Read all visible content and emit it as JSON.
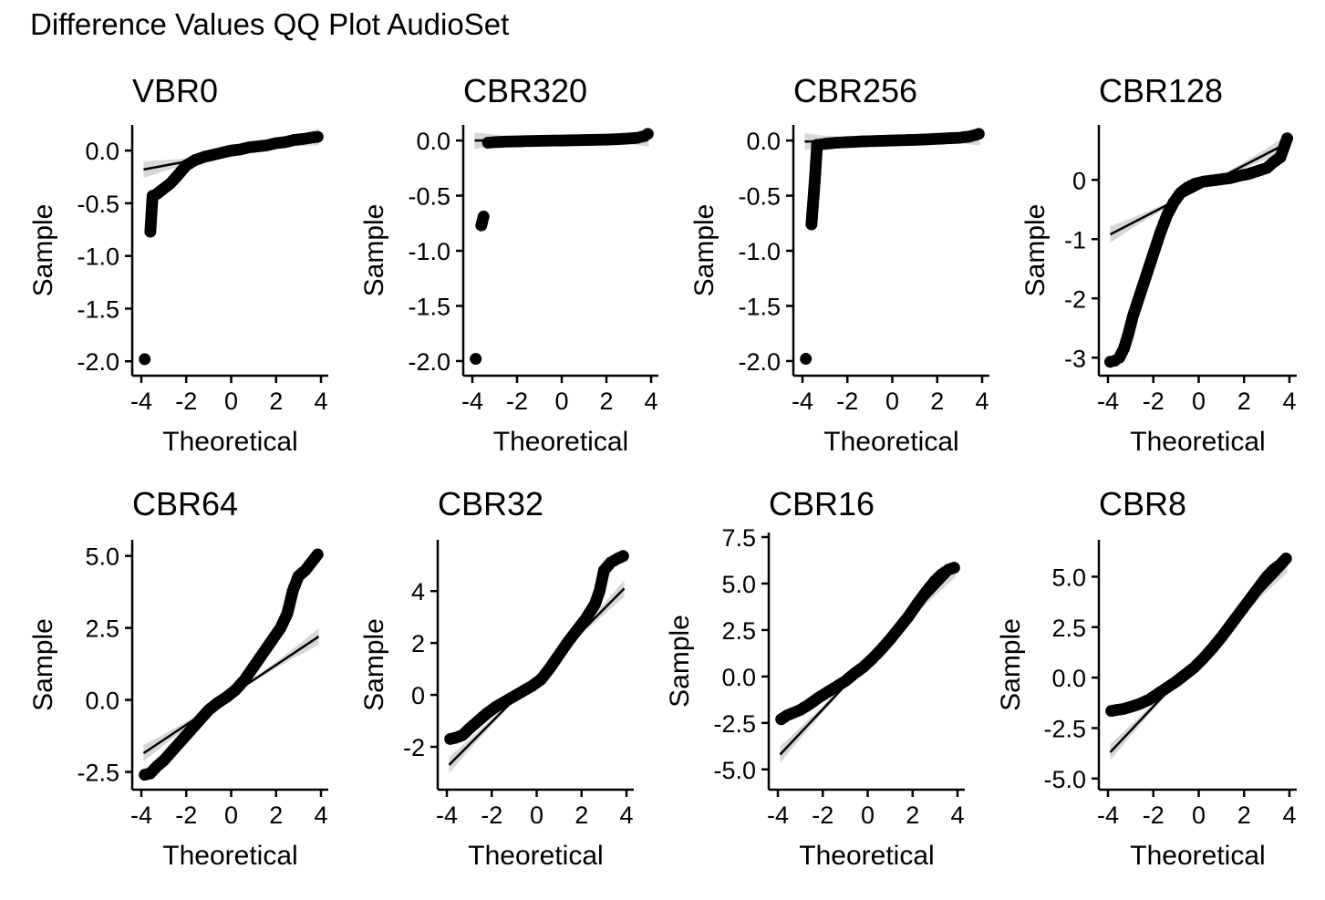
{
  "title": "Difference Values QQ Plot AudioSet",
  "colors": {
    "points": "#000000",
    "line": "#000000",
    "band": "#bdbdbd"
  },
  "chart_data": [
    {
      "type": "scatter",
      "title": "VBR0",
      "xlabel": "Theoretical",
      "ylabel": "Sample",
      "xlim": [
        -4,
        4
      ],
      "ylim": [
        -2.05,
        0.2
      ],
      "xticks": [
        "-4",
        "-2",
        "0",
        "2",
        "4"
      ],
      "xtick_values": [
        -4,
        -2,
        0,
        2,
        4
      ],
      "yticks": [
        "0.0",
        "-0.5",
        "-1.0",
        "-1.5",
        "-2.0"
      ],
      "ytick_values": [
        0,
        -0.5,
        -1,
        -1.5,
        -2
      ],
      "line": {
        "x": [
          -3.9,
          3.9
        ],
        "y": [
          -0.18,
          0.13
        ]
      },
      "points": {
        "x": [
          -3.85,
          -3.6,
          -3.5,
          -3.3,
          -3.0,
          -2.7,
          -2.4,
          -2.0,
          -1.6,
          -1.2,
          -0.8,
          -0.4,
          0.0,
          0.4,
          0.8,
          1.2,
          1.6,
          2.0,
          2.4,
          2.8,
          3.2,
          3.5,
          3.85
        ],
        "y": [
          -1.98,
          -0.77,
          -0.43,
          -0.41,
          -0.36,
          -0.31,
          -0.24,
          -0.14,
          -0.09,
          -0.06,
          -0.04,
          -0.02,
          0.0,
          0.01,
          0.03,
          0.04,
          0.05,
          0.07,
          0.08,
          0.1,
          0.11,
          0.12,
          0.13
        ]
      }
    },
    {
      "type": "scatter",
      "title": "CBR320",
      "xlabel": "Theoretical",
      "ylabel": "Sample",
      "xlim": [
        -4,
        4
      ],
      "ylim": [
        -2.05,
        0.1
      ],
      "xticks": [
        "-4",
        "-2",
        "0",
        "2",
        "4"
      ],
      "xtick_values": [
        -4,
        -2,
        0,
        2,
        4
      ],
      "yticks": [
        "0.0",
        "-0.5",
        "-1.0",
        "-1.5",
        "-2.0"
      ],
      "ytick_values": [
        0,
        -0.5,
        -1,
        -1.5,
        -2
      ],
      "line": {
        "x": [
          -3.9,
          3.9
        ],
        "y": [
          0.0,
          0.02
        ]
      },
      "points": {
        "x": [
          -3.85,
          -3.6,
          -3.5,
          -3.3,
          -3.0,
          -2.5,
          -2.0,
          -1.5,
          -1.0,
          -0.5,
          0.0,
          0.5,
          1.0,
          1.5,
          2.0,
          2.5,
          3.0,
          3.4,
          3.7,
          3.85
        ],
        "y": [
          -1.98,
          -0.77,
          -0.69,
          -0.02,
          -0.015,
          -0.01,
          -0.008,
          -0.005,
          -0.003,
          -0.001,
          0.0,
          0.002,
          0.004,
          0.006,
          0.008,
          0.012,
          0.018,
          0.025,
          0.04,
          0.06
        ]
      }
    },
    {
      "type": "scatter",
      "title": "CBR256",
      "xlabel": "Theoretical",
      "ylabel": "Sample",
      "xlim": [
        -4,
        4
      ],
      "ylim": [
        -2.05,
        0.1
      ],
      "xticks": [
        "-4",
        "-2",
        "0",
        "2",
        "4"
      ],
      "xtick_values": [
        -4,
        -2,
        0,
        2,
        4
      ],
      "yticks": [
        "0.0",
        "-0.5",
        "-1.0",
        "-1.5",
        "-2.0"
      ],
      "ytick_values": [
        0,
        -0.5,
        -1,
        -1.5,
        -2
      ],
      "line": {
        "x": [
          -3.9,
          3.9
        ],
        "y": [
          -0.01,
          0.03
        ]
      },
      "points": {
        "x": [
          -3.85,
          -3.6,
          -3.45,
          -3.35,
          -3.0,
          -2.5,
          -2.0,
          -1.5,
          -1.0,
          -0.5,
          0.0,
          0.5,
          1.0,
          1.5,
          2.0,
          2.5,
          3.0,
          3.4,
          3.7,
          3.85
        ],
        "y": [
          -1.98,
          -0.76,
          -0.36,
          -0.04,
          -0.03,
          -0.02,
          -0.015,
          -0.01,
          -0.006,
          -0.003,
          0.0,
          0.003,
          0.006,
          0.01,
          0.015,
          0.02,
          0.025,
          0.035,
          0.05,
          0.06
        ]
      }
    },
    {
      "type": "scatter",
      "title": "CBR128",
      "xlabel": "Theoretical",
      "ylabel": "Sample",
      "xlim": [
        -4,
        4
      ],
      "ylim": [
        -3.15,
        0.85
      ],
      "xticks": [
        "-4",
        "-2",
        "0",
        "2",
        "4"
      ],
      "xtick_values": [
        -4,
        -2,
        0,
        2,
        4
      ],
      "yticks": [
        "0",
        "-1",
        "-2",
        "-3"
      ],
      "ytick_values": [
        0,
        -1,
        -2,
        -3
      ],
      "line": {
        "x": [
          -3.9,
          3.9
        ],
        "y": [
          -0.92,
          0.62
        ]
      },
      "points": {
        "x": [
          -3.9,
          -3.7,
          -3.5,
          -3.3,
          -3.1,
          -2.9,
          -2.6,
          -2.3,
          -2.0,
          -1.7,
          -1.4,
          -1.1,
          -0.8,
          -0.5,
          -0.2,
          0.2,
          0.6,
          1.0,
          1.4,
          1.8,
          2.2,
          2.6,
          3.0,
          3.3,
          3.6,
          3.9
        ],
        "y": [
          -3.07,
          -3.05,
          -3.0,
          -2.85,
          -2.6,
          -2.3,
          -1.95,
          -1.6,
          -1.25,
          -0.9,
          -0.6,
          -0.38,
          -0.22,
          -0.13,
          -0.07,
          -0.03,
          -0.01,
          0.01,
          0.03,
          0.07,
          0.1,
          0.15,
          0.2,
          0.3,
          0.38,
          0.7
        ]
      }
    },
    {
      "type": "scatter",
      "title": "CBR64",
      "xlabel": "Theoretical",
      "ylabel": "Sample",
      "xlim": [
        -4,
        4
      ],
      "ylim": [
        -2.8,
        5.4
      ],
      "xticks": [
        "-4",
        "-2",
        "0",
        "2",
        "4"
      ],
      "xtick_values": [
        -4,
        -2,
        0,
        2,
        4
      ],
      "yticks": [
        "5.0",
        "2.5",
        "0.0",
        "-2.5"
      ],
      "ytick_values": [
        5,
        2.5,
        0,
        -2.5
      ],
      "line": {
        "x": [
          -3.9,
          3.9
        ],
        "y": [
          -1.85,
          2.2
        ]
      },
      "points": {
        "x": [
          -3.85,
          -3.6,
          -3.3,
          -3.0,
          -2.6,
          -2.2,
          -1.8,
          -1.4,
          -1.0,
          -0.6,
          -0.2,
          0.2,
          0.6,
          1.0,
          1.4,
          1.8,
          2.2,
          2.5,
          2.75,
          3.0,
          3.3,
          3.6,
          3.85
        ],
        "y": [
          -2.6,
          -2.55,
          -2.3,
          -2.1,
          -1.75,
          -1.4,
          -1.05,
          -0.7,
          -0.35,
          -0.1,
          0.1,
          0.35,
          0.7,
          1.15,
          1.6,
          2.05,
          2.5,
          3.0,
          3.8,
          4.3,
          4.5,
          4.8,
          5.05
        ]
      }
    },
    {
      "type": "scatter",
      "title": "CBR32",
      "xlabel": "Theoretical",
      "ylabel": "Sample",
      "xlim": [
        -4,
        4
      ],
      "ylim": [
        -3.3,
        5.8
      ],
      "xticks": [
        "-4",
        "-2",
        "0",
        "2",
        "4"
      ],
      "xtick_values": [
        -4,
        -2,
        0,
        2,
        4
      ],
      "yticks": [
        "4",
        "2",
        "0",
        "-2"
      ],
      "ytick_values": [
        4,
        2,
        0,
        -2
      ],
      "line": {
        "x": [
          -3.9,
          3.9
        ],
        "y": [
          -2.7,
          4.1
        ]
      },
      "points": {
        "x": [
          -3.85,
          -3.6,
          -3.3,
          -3.0,
          -2.6,
          -2.2,
          -1.8,
          -1.4,
          -1.0,
          -0.6,
          -0.2,
          0.2,
          0.6,
          1.0,
          1.4,
          1.8,
          2.2,
          2.6,
          2.8,
          3.0,
          3.3,
          3.6,
          3.85
        ],
        "y": [
          -1.7,
          -1.65,
          -1.55,
          -1.3,
          -1.0,
          -0.7,
          -0.45,
          -0.25,
          -0.05,
          0.15,
          0.35,
          0.6,
          1.05,
          1.55,
          2.05,
          2.5,
          2.95,
          3.5,
          4.0,
          4.8,
          5.1,
          5.25,
          5.35
        ]
      }
    },
    {
      "type": "scatter",
      "title": "CBR16",
      "xlabel": "Theoretical",
      "ylabel": "Sample",
      "xlim": [
        -4,
        4
      ],
      "ylim": [
        -5.6,
        7.5
      ],
      "xticks": [
        "-4",
        "-2",
        "0",
        "2",
        "4"
      ],
      "xtick_values": [
        -4,
        -2,
        0,
        2,
        4
      ],
      "yticks": [
        "7.5",
        "5.0",
        "2.5",
        "0.0",
        "-2.5",
        "-5.0"
      ],
      "ytick_values": [
        7.5,
        5,
        2.5,
        0,
        -2.5,
        -5
      ],
      "line": {
        "x": [
          -3.9,
          3.9
        ],
        "y": [
          -4.2,
          5.8
        ]
      },
      "points": {
        "x": [
          -3.85,
          -3.6,
          -3.3,
          -3.0,
          -2.6,
          -2.2,
          -1.8,
          -1.4,
          -1.0,
          -0.6,
          -0.2,
          0.2,
          0.6,
          1.0,
          1.4,
          1.8,
          2.2,
          2.6,
          3.0,
          3.3,
          3.6,
          3.85
        ],
        "y": [
          -2.3,
          -2.1,
          -1.95,
          -1.8,
          -1.5,
          -1.15,
          -0.85,
          -0.55,
          -0.25,
          0.15,
          0.5,
          0.95,
          1.45,
          2.0,
          2.6,
          3.2,
          3.9,
          4.55,
          5.15,
          5.5,
          5.75,
          5.85
        ]
      }
    },
    {
      "type": "scatter",
      "title": "CBR8",
      "xlabel": "Theoretical",
      "ylabel": "Sample",
      "xlim": [
        -4,
        4
      ],
      "ylim": [
        -5.1,
        6.6
      ],
      "xticks": [
        "-4",
        "-2",
        "0",
        "2",
        "4"
      ],
      "xtick_values": [
        -4,
        -2,
        0,
        2,
        4
      ],
      "yticks": [
        "5.0",
        "2.5",
        "0.0",
        "-2.5",
        "-5.0"
      ],
      "ytick_values": [
        5,
        2.5,
        0,
        -2.5,
        -5
      ],
      "line": {
        "x": [
          -3.9,
          3.9
        ],
        "y": [
          -3.7,
          5.6
        ]
      },
      "points": {
        "x": [
          -3.85,
          -3.6,
          -3.3,
          -3.0,
          -2.6,
          -2.2,
          -1.8,
          -1.4,
          -1.0,
          -0.6,
          -0.2,
          0.2,
          0.6,
          1.0,
          1.4,
          1.8,
          2.2,
          2.6,
          3.0,
          3.3,
          3.6,
          3.85
        ],
        "y": [
          -1.65,
          -1.6,
          -1.55,
          -1.45,
          -1.3,
          -1.1,
          -0.8,
          -0.5,
          -0.2,
          0.15,
          0.5,
          0.95,
          1.45,
          2.0,
          2.6,
          3.2,
          3.8,
          4.4,
          5.0,
          5.35,
          5.6,
          5.9
        ]
      }
    }
  ]
}
